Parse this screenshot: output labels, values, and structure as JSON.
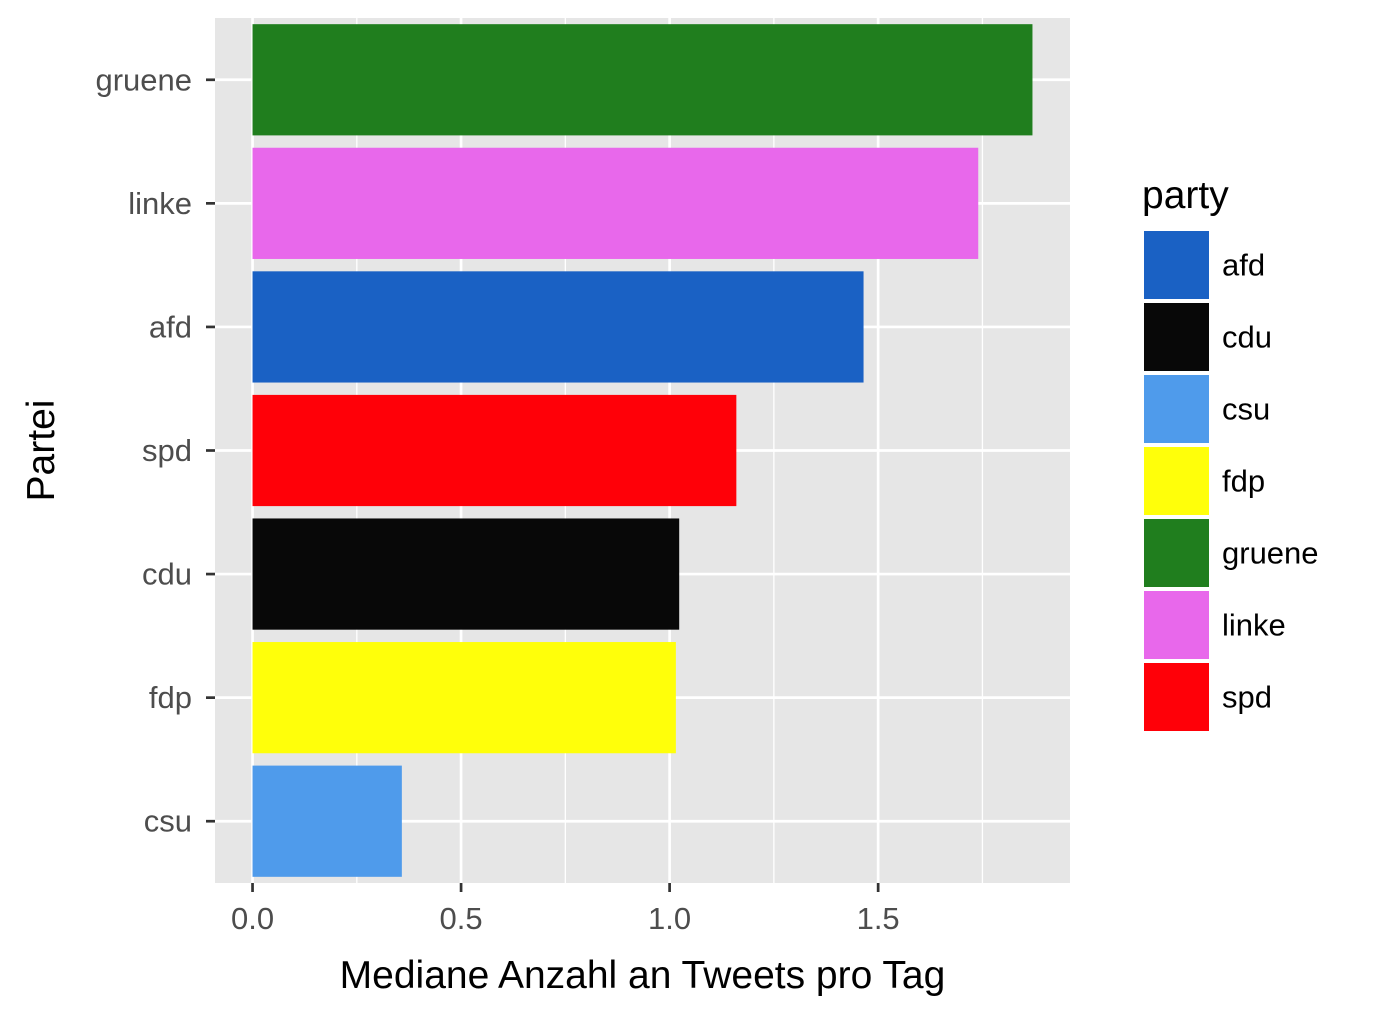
{
  "chart_data": {
    "type": "bar",
    "orientation": "horizontal",
    "xlabel": "Mediane Anzahl an Tweets pro Tag",
    "ylabel": "Partei",
    "xlim": [
      -0.09,
      1.96
    ],
    "x_ticks": [
      0.0,
      0.5,
      1.0,
      1.5
    ],
    "x_tick_labels": [
      "0.0",
      "0.5",
      "1.0",
      "1.5"
    ],
    "categories": [
      "gruene",
      "linke",
      "afd",
      "spd",
      "cdu",
      "fdp",
      "csu"
    ],
    "values": [
      1.87,
      1.74,
      1.465,
      1.16,
      1.023,
      1.015,
      0.358
    ],
    "bar_colors": {
      "afd": "#1A61C4",
      "cdu": "#080808",
      "csu": "#4F9BEB",
      "fdp": "#FFFF0A",
      "gruene": "#207E1E",
      "linke": "#E868EB",
      "spd": "#FF0008"
    },
    "grid": true,
    "panel_background": "#E6E6E6",
    "legend": {
      "title": "party",
      "position": "right",
      "items": [
        "afd",
        "cdu",
        "csu",
        "fdp",
        "gruene",
        "linke",
        "spd"
      ]
    }
  }
}
